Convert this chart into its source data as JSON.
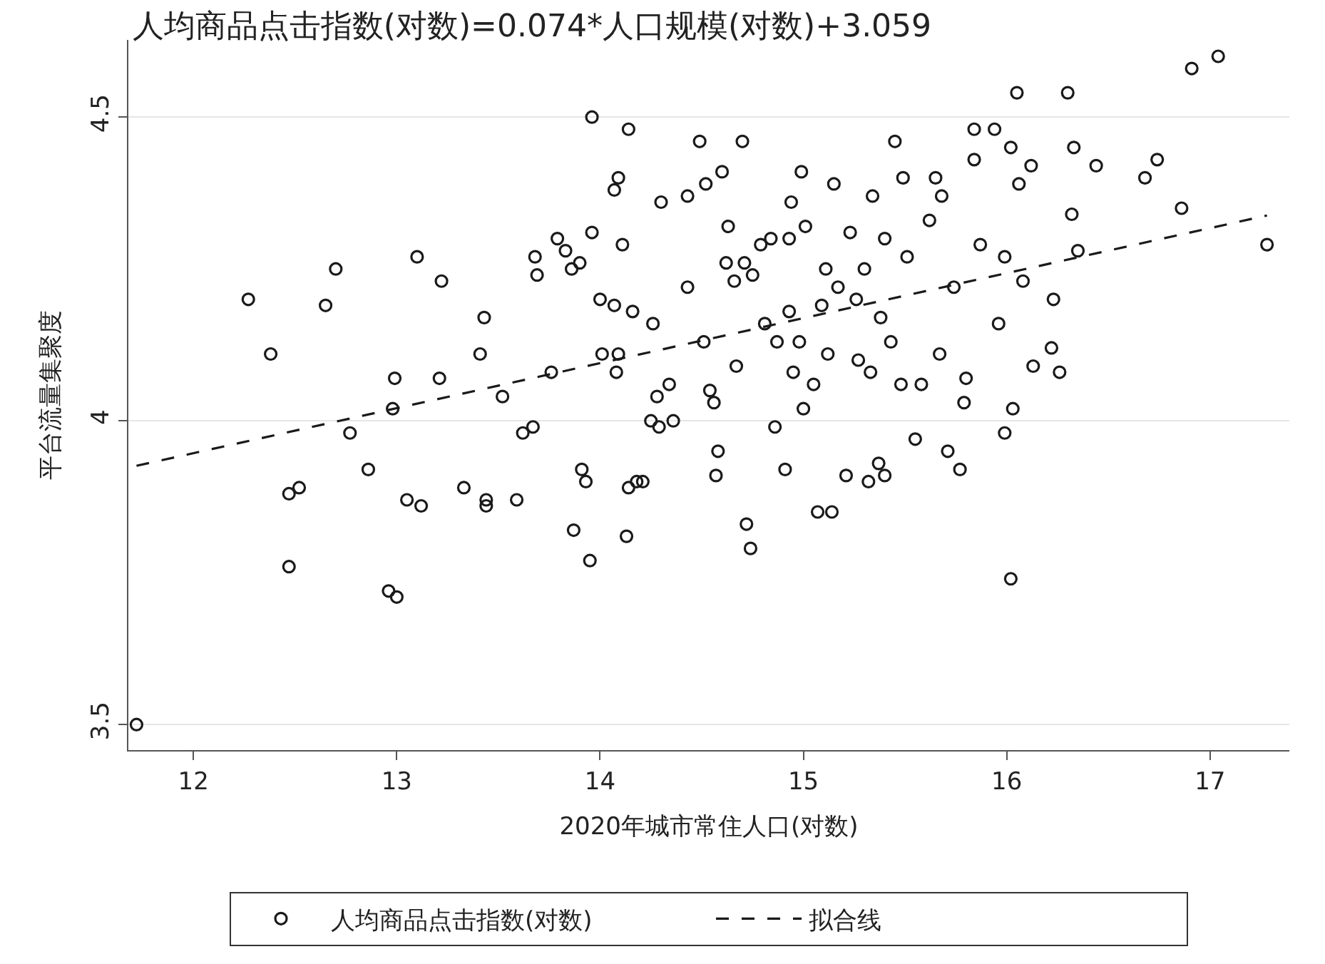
{
  "chart_data": {
    "type": "scatter",
    "title": "人均商品点击指数(对数)=0.074*人口规模(对数)+3.059",
    "xlabel": "2020年城市常住人口(对数)",
    "ylabel": "平台流量集聚度",
    "xlim": [
      11.68,
      17.39
    ],
    "ylim": [
      3.458,
      4.627
    ],
    "xticks": [
      12,
      13,
      14,
      15,
      16,
      17
    ],
    "yticks": [
      3.5,
      4,
      4.5
    ],
    "grid": "y",
    "legend": "bottom",
    "series": [
      {
        "name": "人均商品点击指数(对数)",
        "color": "#1a1a1a",
        "marker": "circle",
        "x": [
          11.72,
          12.27,
          12.38,
          12.47,
          12.47,
          12.52,
          12.65,
          12.7,
          12.77,
          12.86,
          12.96,
          13.0,
          12.98,
          12.99,
          13.05,
          13.1,
          13.12,
          13.21,
          13.22,
          13.33,
          13.41,
          13.43,
          13.44,
          13.44,
          13.52,
          13.59,
          13.62,
          13.67,
          13.68,
          13.69,
          13.76,
          13.79,
          13.83,
          13.86,
          13.87,
          13.9,
          13.91,
          13.93,
          13.95,
          13.96,
          13.96,
          14.0,
          14.01,
          14.07,
          14.07,
          14.09,
          14.09,
          14.08,
          14.11,
          14.13,
          14.14,
          14.14,
          14.16,
          14.18,
          14.21,
          14.25,
          14.26,
          14.28,
          14.29,
          14.3,
          14.34,
          14.36,
          14.43,
          14.43,
          14.49,
          14.51,
          14.52,
          14.54,
          14.56,
          14.57,
          14.58,
          14.6,
          14.62,
          14.63,
          14.66,
          14.67,
          14.7,
          14.71,
          14.72,
          14.74,
          14.75,
          14.79,
          14.81,
          14.84,
          14.86,
          14.87,
          14.91,
          14.93,
          14.93,
          14.94,
          14.95,
          14.98,
          14.99,
          15.0,
          15.01,
          15.05,
          15.07,
          15.09,
          15.11,
          15.12,
          15.14,
          15.15,
          15.17,
          15.21,
          15.23,
          15.26,
          15.27,
          15.3,
          15.32,
          15.33,
          15.34,
          15.37,
          15.38,
          15.4,
          15.4,
          15.43,
          15.45,
          15.48,
          15.49,
          15.51,
          15.55,
          15.58,
          15.62,
          15.65,
          15.67,
          15.68,
          15.71,
          15.74,
          15.77,
          15.79,
          15.8,
          15.84,
          15.84,
          15.87,
          15.94,
          15.96,
          15.99,
          15.99,
          16.02,
          16.02,
          16.03,
          16.05,
          16.06,
          16.08,
          16.12,
          16.13,
          16.22,
          16.26,
          16.23,
          16.3,
          16.32,
          16.33,
          16.35,
          16.44,
          16.68,
          16.74,
          16.86,
          16.91,
          17.04,
          17.28
        ],
        "values": [
          3.5,
          4.2,
          4.11,
          3.88,
          3.76,
          3.89,
          4.19,
          4.25,
          3.98,
          3.92,
          3.72,
          3.71,
          4.02,
          4.07,
          3.87,
          4.27,
          3.86,
          4.07,
          4.23,
          3.89,
          4.11,
          4.17,
          3.86,
          3.87,
          4.04,
          3.87,
          3.98,
          3.99,
          4.27,
          4.24,
          4.08,
          4.3,
          4.28,
          4.25,
          3.82,
          4.26,
          3.92,
          3.9,
          3.77,
          4.5,
          4.31,
          4.2,
          4.11,
          4.19,
          4.38,
          4.11,
          4.4,
          4.08,
          4.29,
          3.81,
          3.89,
          4.48,
          4.18,
          3.9,
          3.9,
          4.0,
          4.16,
          4.04,
          3.99,
          4.36,
          4.06,
          4.0,
          4.22,
          4.37,
          4.46,
          4.13,
          4.39,
          4.05,
          4.03,
          3.91,
          3.95,
          4.41,
          4.26,
          4.32,
          4.23,
          4.09,
          4.46,
          4.26,
          3.83,
          3.79,
          4.24,
          4.29,
          4.16,
          4.3,
          3.99,
          4.13,
          3.92,
          4.3,
          4.18,
          4.36,
          4.08,
          4.13,
          4.41,
          4.02,
          4.32,
          4.06,
          3.85,
          4.19,
          4.25,
          4.11,
          3.85,
          4.39,
          4.22,
          3.91,
          4.31,
          4.2,
          4.1,
          4.25,
          3.9,
          4.08,
          4.37,
          3.93,
          4.17,
          3.91,
          4.3,
          4.13,
          4.46,
          4.06,
          4.4,
          4.27,
          3.97,
          4.06,
          4.33,
          4.4,
          4.11,
          4.37,
          3.95,
          4.22,
          3.92,
          4.03,
          4.07,
          4.48,
          4.43,
          4.29,
          4.48,
          4.16,
          4.27,
          3.98,
          4.45,
          3.74,
          4.02,
          4.54,
          4.39,
          4.23,
          4.42,
          4.09,
          4.12,
          4.08,
          4.2,
          4.54,
          4.34,
          4.45,
          4.28,
          4.42,
          4.4,
          4.43,
          4.35,
          4.58,
          4.6,
          4.29
        ]
      },
      {
        "name": "拟合线",
        "type": "line",
        "color": "#1a1a1a",
        "marker": "none",
        "line_style": "dashed",
        "x": [
          11.72,
          17.28
        ],
        "values": [
          3.926,
          4.338
        ]
      }
    ]
  }
}
